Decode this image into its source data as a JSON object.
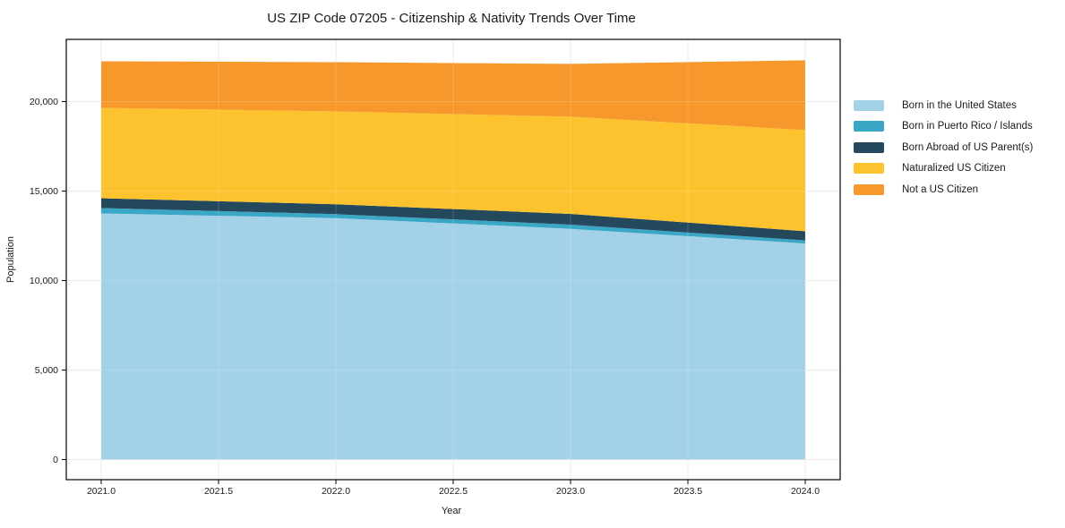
{
  "chart_data": {
    "type": "area",
    "stacked": true,
    "title": "US ZIP Code 07205 - Citizenship & Nativity Trends Over Time",
    "xlabel": "Year",
    "ylabel": "Population",
    "x": [
      2021,
      2022,
      2023,
      2024
    ],
    "series": [
      {
        "name": "Born in the United States",
        "color": "#a3d2e8",
        "values": [
          13750,
          13490,
          12890,
          12070
        ]
      },
      {
        "name": "Born in Puerto Rico / Islands",
        "color": "#3ba7c6",
        "values": [
          300,
          220,
          235,
          175
        ]
      },
      {
        "name": "Born Abroad of US Parent(s)",
        "color": "#24495d",
        "values": [
          550,
          555,
          600,
          510
        ]
      },
      {
        "name": "Naturalized US Citizen",
        "color": "#fcc32e",
        "values": [
          5050,
          5185,
          5430,
          5650
        ]
      },
      {
        "name": "Not a US Citizen",
        "color": "#f7982c",
        "values": [
          2600,
          2750,
          2950,
          3900
        ]
      }
    ],
    "x_ticks": {
      "values": [
        2021,
        2021.5,
        2022,
        2022.5,
        2023,
        2023.5,
        2024
      ],
      "labels": [
        "2021.0",
        "2021.5",
        "2022.0",
        "2022.5",
        "2023.0",
        "2023.5",
        "2024.0"
      ]
    },
    "y_ticks": {
      "values": [
        0,
        5000,
        10000,
        15000,
        20000
      ],
      "labels": [
        "0",
        "5,000",
        "10,000",
        "15,000",
        "20,000"
      ]
    },
    "xlim": [
      2020.85,
      2024.15
    ],
    "ylim": [
      -1125,
      23475
    ],
    "grid": true,
    "legend_position": "right-outside"
  },
  "colors": {
    "background": "#ffffff",
    "grid": "#e7e7e7",
    "grid_over_area": "rgba(255,255,255,0.16)",
    "spine": "#000000",
    "text": "#1a1a1a"
  }
}
